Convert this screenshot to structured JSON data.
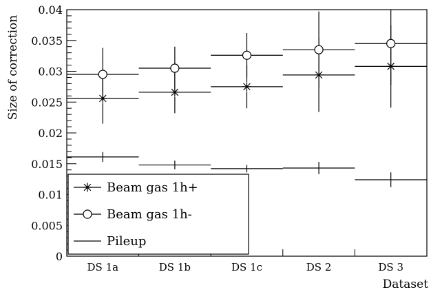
{
  "chart_data": {
    "type": "scatter",
    "xlabel": "Dataset",
    "ylabel": "Size of correction",
    "ylim": [
      0,
      0.04
    ],
    "yticks": [
      "0",
      "0.005",
      "0.01",
      "0.015",
      "0.02",
      "0.025",
      "0.03",
      "0.035",
      "0.04"
    ],
    "categories": [
      "DS 1a",
      "DS 1b",
      "DS 1c",
      "DS 2",
      "DS 3"
    ],
    "grid": false,
    "legend_position": "bottom-left",
    "series": [
      {
        "name": "Beam gas 1h+",
        "marker": "star",
        "values": [
          0.0256,
          0.0266,
          0.0275,
          0.0294,
          0.0308
        ],
        "errors": [
          0.0041,
          0.0034,
          0.0035,
          0.006,
          0.0067
        ]
      },
      {
        "name": "Beam gas 1h-",
        "marker": "circle",
        "values": [
          0.0295,
          0.0305,
          0.0326,
          0.0335,
          0.0345
        ],
        "errors": [
          0.0043,
          0.0035,
          0.0036,
          0.0062,
          0.0067
        ]
      },
      {
        "name": "Pileup",
        "marker": "none",
        "values": [
          0.0161,
          0.0148,
          0.0142,
          0.0143,
          0.0124
        ],
        "errors": [
          0.0008,
          0.0007,
          0.0006,
          0.001,
          0.0012
        ]
      }
    ]
  }
}
